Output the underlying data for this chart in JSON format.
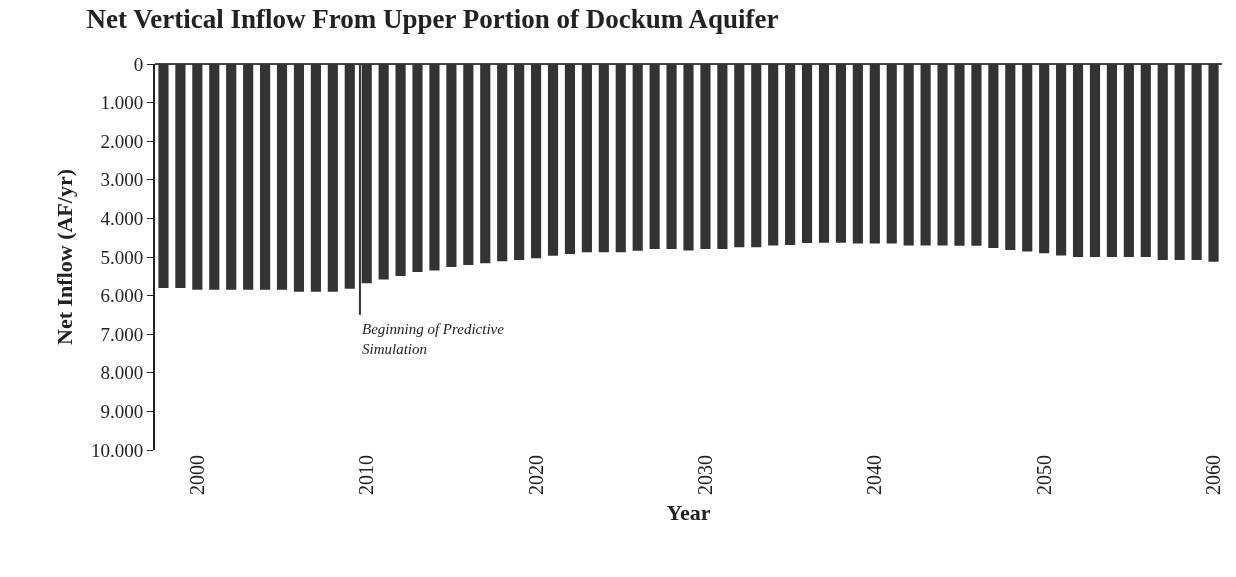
{
  "chart_data": {
    "type": "bar",
    "title": "Net Vertical Inflow From Upper Portion of Dockum Aquifer",
    "xlabel": "Year",
    "ylabel": "Net Inflow (AF/yr)",
    "x": [
      1998,
      1999,
      2000,
      2001,
      2002,
      2003,
      2004,
      2005,
      2006,
      2007,
      2008,
      2009,
      2010,
      2011,
      2012,
      2013,
      2014,
      2015,
      2016,
      2017,
      2018,
      2019,
      2020,
      2021,
      2022,
      2023,
      2024,
      2025,
      2026,
      2027,
      2028,
      2029,
      2030,
      2031,
      2032,
      2033,
      2034,
      2035,
      2036,
      2037,
      2038,
      2039,
      2040,
      2041,
      2042,
      2043,
      2044,
      2045,
      2046,
      2047,
      2048,
      2049,
      2050,
      2051,
      2052,
      2053,
      2054,
      2055,
      2056,
      2057,
      2058,
      2059,
      2060
    ],
    "values": [
      5800,
      5800,
      5850,
      5850,
      5850,
      5850,
      5850,
      5850,
      5900,
      5900,
      5900,
      5820,
      5680,
      5580,
      5490,
      5390,
      5350,
      5260,
      5210,
      5160,
      5110,
      5080,
      5030,
      4970,
      4920,
      4880,
      4880,
      4880,
      4840,
      4790,
      4790,
      4830,
      4790,
      4790,
      4750,
      4750,
      4700,
      4690,
      4640,
      4630,
      4630,
      4650,
      4650,
      4650,
      4700,
      4700,
      4700,
      4710,
      4710,
      4770,
      4820,
      4860,
      4900,
      4960,
      5000,
      5000,
      5000,
      5000,
      5000,
      5080,
      5080,
      5080,
      5120
    ],
    "color": "#333333",
    "xlim": [
      1997.5,
      2060.5
    ],
    "xticks": [
      2000,
      2010,
      2020,
      2030,
      2040,
      2050,
      2060
    ],
    "ylim": [
      10000,
      0
    ],
    "yticks": [
      0,
      {
        "value": 1000,
        "label": "1.000"
      },
      {
        "value": 2000,
        "label": "2.000"
      },
      {
        "value": 3000,
        "label": "3.000"
      },
      {
        "value": 4000,
        "label": "4.000"
      },
      {
        "value": 5000,
        "label": "5.000"
      },
      {
        "value": 6000,
        "label": "6.000"
      },
      {
        "value": 7000,
        "label": "7.000"
      },
      {
        "value": 8000,
        "label": "8.000"
      },
      {
        "value": 9000,
        "label": "9.000"
      },
      {
        "value": 10000,
        "label": "10.000"
      }
    ],
    "ref_lines": [
      {
        "axis": "x",
        "value": 2009.6,
        "label": "Beginning of Predictive Simulation",
        "color": "#333333"
      }
    ],
    "legend": false
  }
}
